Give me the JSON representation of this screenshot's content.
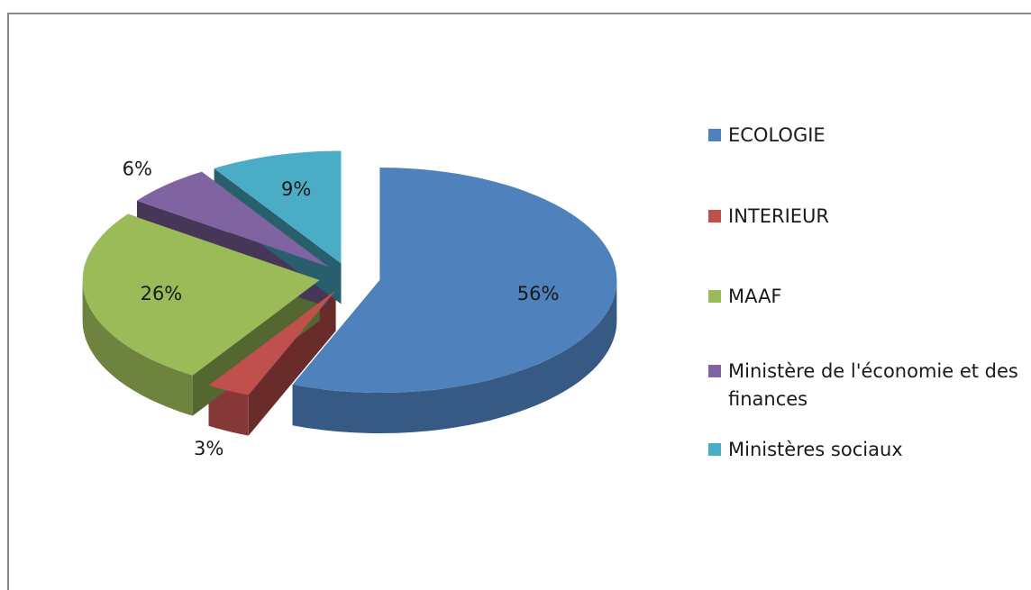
{
  "chart_data": {
    "type": "pie3d",
    "categories": [
      "ECOLOGIE",
      "INTERIEUR",
      "MAAF",
      "Ministère de l'économie et des finances",
      "Ministères sociaux"
    ],
    "values": [
      56,
      3,
      26,
      6,
      9
    ],
    "value_labels": [
      "56%",
      "3%",
      "26%",
      "6%",
      "9%"
    ],
    "colors": [
      "#4f81bd",
      "#c0504d",
      "#9bbb59",
      "#8064a2",
      "#4bacc6"
    ],
    "legend": "right"
  }
}
